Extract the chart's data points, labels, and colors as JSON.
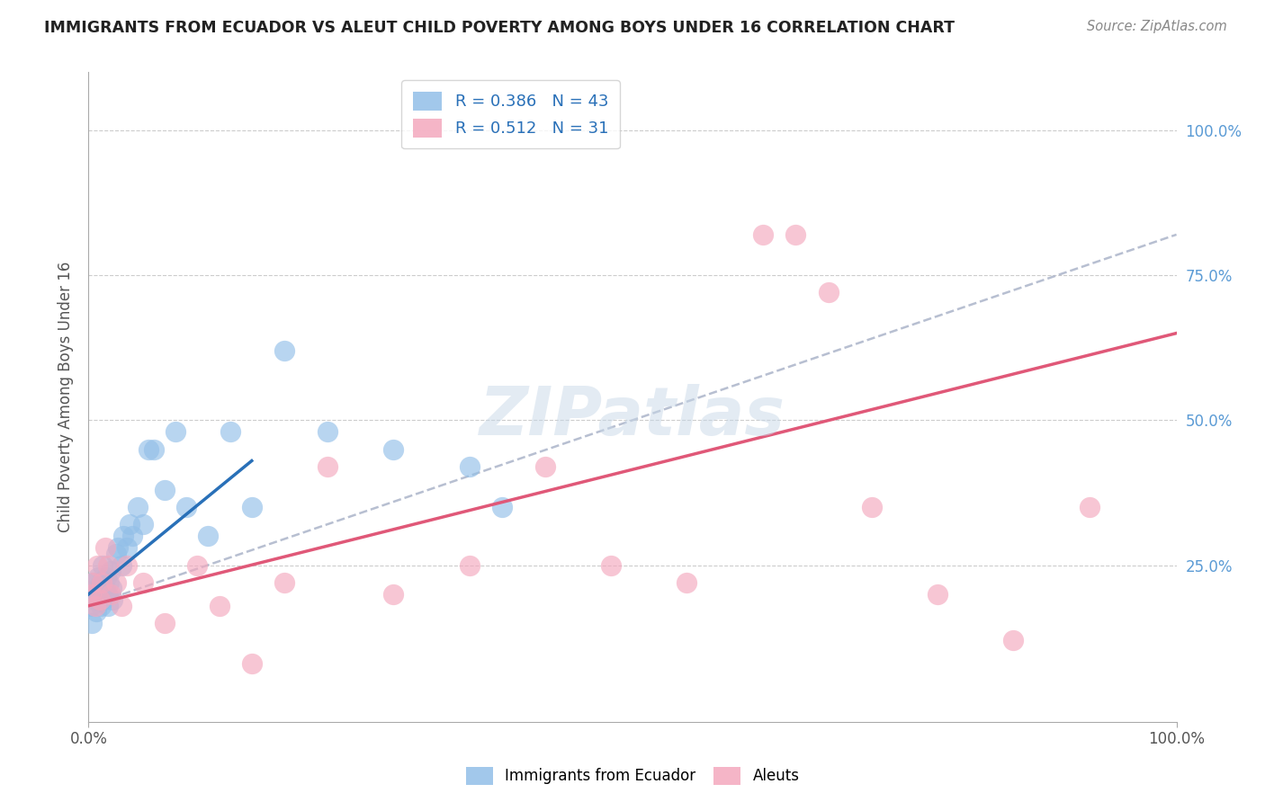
{
  "title": "IMMIGRANTS FROM ECUADOR VS ALEUT CHILD POVERTY AMONG BOYS UNDER 16 CORRELATION CHART",
  "source": "Source: ZipAtlas.com",
  "ylabel": "Child Poverty Among Boys Under 16",
  "xlim": [
    0,
    1.0
  ],
  "ylim": [
    -0.02,
    1.1
  ],
  "y_tick_positions": [
    0.25,
    0.5,
    0.75,
    1.0
  ],
  "y_tick_labels": [
    "25.0%",
    "50.0%",
    "75.0%",
    "100.0%"
  ],
  "legend_r1": "R = 0.386",
  "legend_n1": "N = 43",
  "legend_r2": "R = 0.512",
  "legend_n2": "N = 31",
  "blue_color": "#92bfe8",
  "pink_color": "#f4a8be",
  "line_blue": "#2970b8",
  "line_pink": "#e05878",
  "dashed_color": "#b0b8cc",
  "watermark": "ZIPatlas",
  "ecuador_x": [
    0.002,
    0.003,
    0.004,
    0.005,
    0.006,
    0.007,
    0.008,
    0.009,
    0.01,
    0.011,
    0.012,
    0.013,
    0.014,
    0.015,
    0.016,
    0.017,
    0.018,
    0.019,
    0.02,
    0.021,
    0.022,
    0.025,
    0.027,
    0.03,
    0.032,
    0.035,
    0.038,
    0.04,
    0.045,
    0.05,
    0.055,
    0.06,
    0.07,
    0.08,
    0.09,
    0.11,
    0.13,
    0.15,
    0.18,
    0.22,
    0.28,
    0.35,
    0.38
  ],
  "ecuador_y": [
    0.18,
    0.15,
    0.2,
    0.22,
    0.19,
    0.17,
    0.21,
    0.23,
    0.2,
    0.18,
    0.22,
    0.25,
    0.19,
    0.21,
    0.23,
    0.2,
    0.18,
    0.22,
    0.24,
    0.21,
    0.19,
    0.27,
    0.28,
    0.25,
    0.3,
    0.28,
    0.32,
    0.3,
    0.35,
    0.32,
    0.45,
    0.45,
    0.38,
    0.48,
    0.35,
    0.3,
    0.48,
    0.35,
    0.62,
    0.48,
    0.45,
    0.42,
    0.35
  ],
  "aleut_x": [
    0.002,
    0.004,
    0.006,
    0.008,
    0.01,
    0.012,
    0.015,
    0.018,
    0.02,
    0.025,
    0.03,
    0.035,
    0.05,
    0.07,
    0.1,
    0.12,
    0.15,
    0.18,
    0.22,
    0.28,
    0.35,
    0.42,
    0.48,
    0.55,
    0.62,
    0.65,
    0.68,
    0.72,
    0.78,
    0.85,
    0.92
  ],
  "aleut_y": [
    0.2,
    0.22,
    0.18,
    0.25,
    0.19,
    0.22,
    0.28,
    0.25,
    0.2,
    0.22,
    0.18,
    0.25,
    0.22,
    0.15,
    0.25,
    0.18,
    0.08,
    0.22,
    0.42,
    0.2,
    0.25,
    0.42,
    0.25,
    0.22,
    0.82,
    0.82,
    0.72,
    0.35,
    0.2,
    0.12,
    0.35
  ],
  "blue_line_x0": 0.0,
  "blue_line_y0": 0.2,
  "blue_line_x1": 0.15,
  "blue_line_y1": 0.43,
  "pink_line_x0": 0.0,
  "pink_line_y0": 0.18,
  "pink_line_x1": 1.0,
  "pink_line_y1": 0.65,
  "dash_line_x0": 0.0,
  "dash_line_y0": 0.18,
  "dash_line_x1": 1.0,
  "dash_line_y1": 0.82
}
